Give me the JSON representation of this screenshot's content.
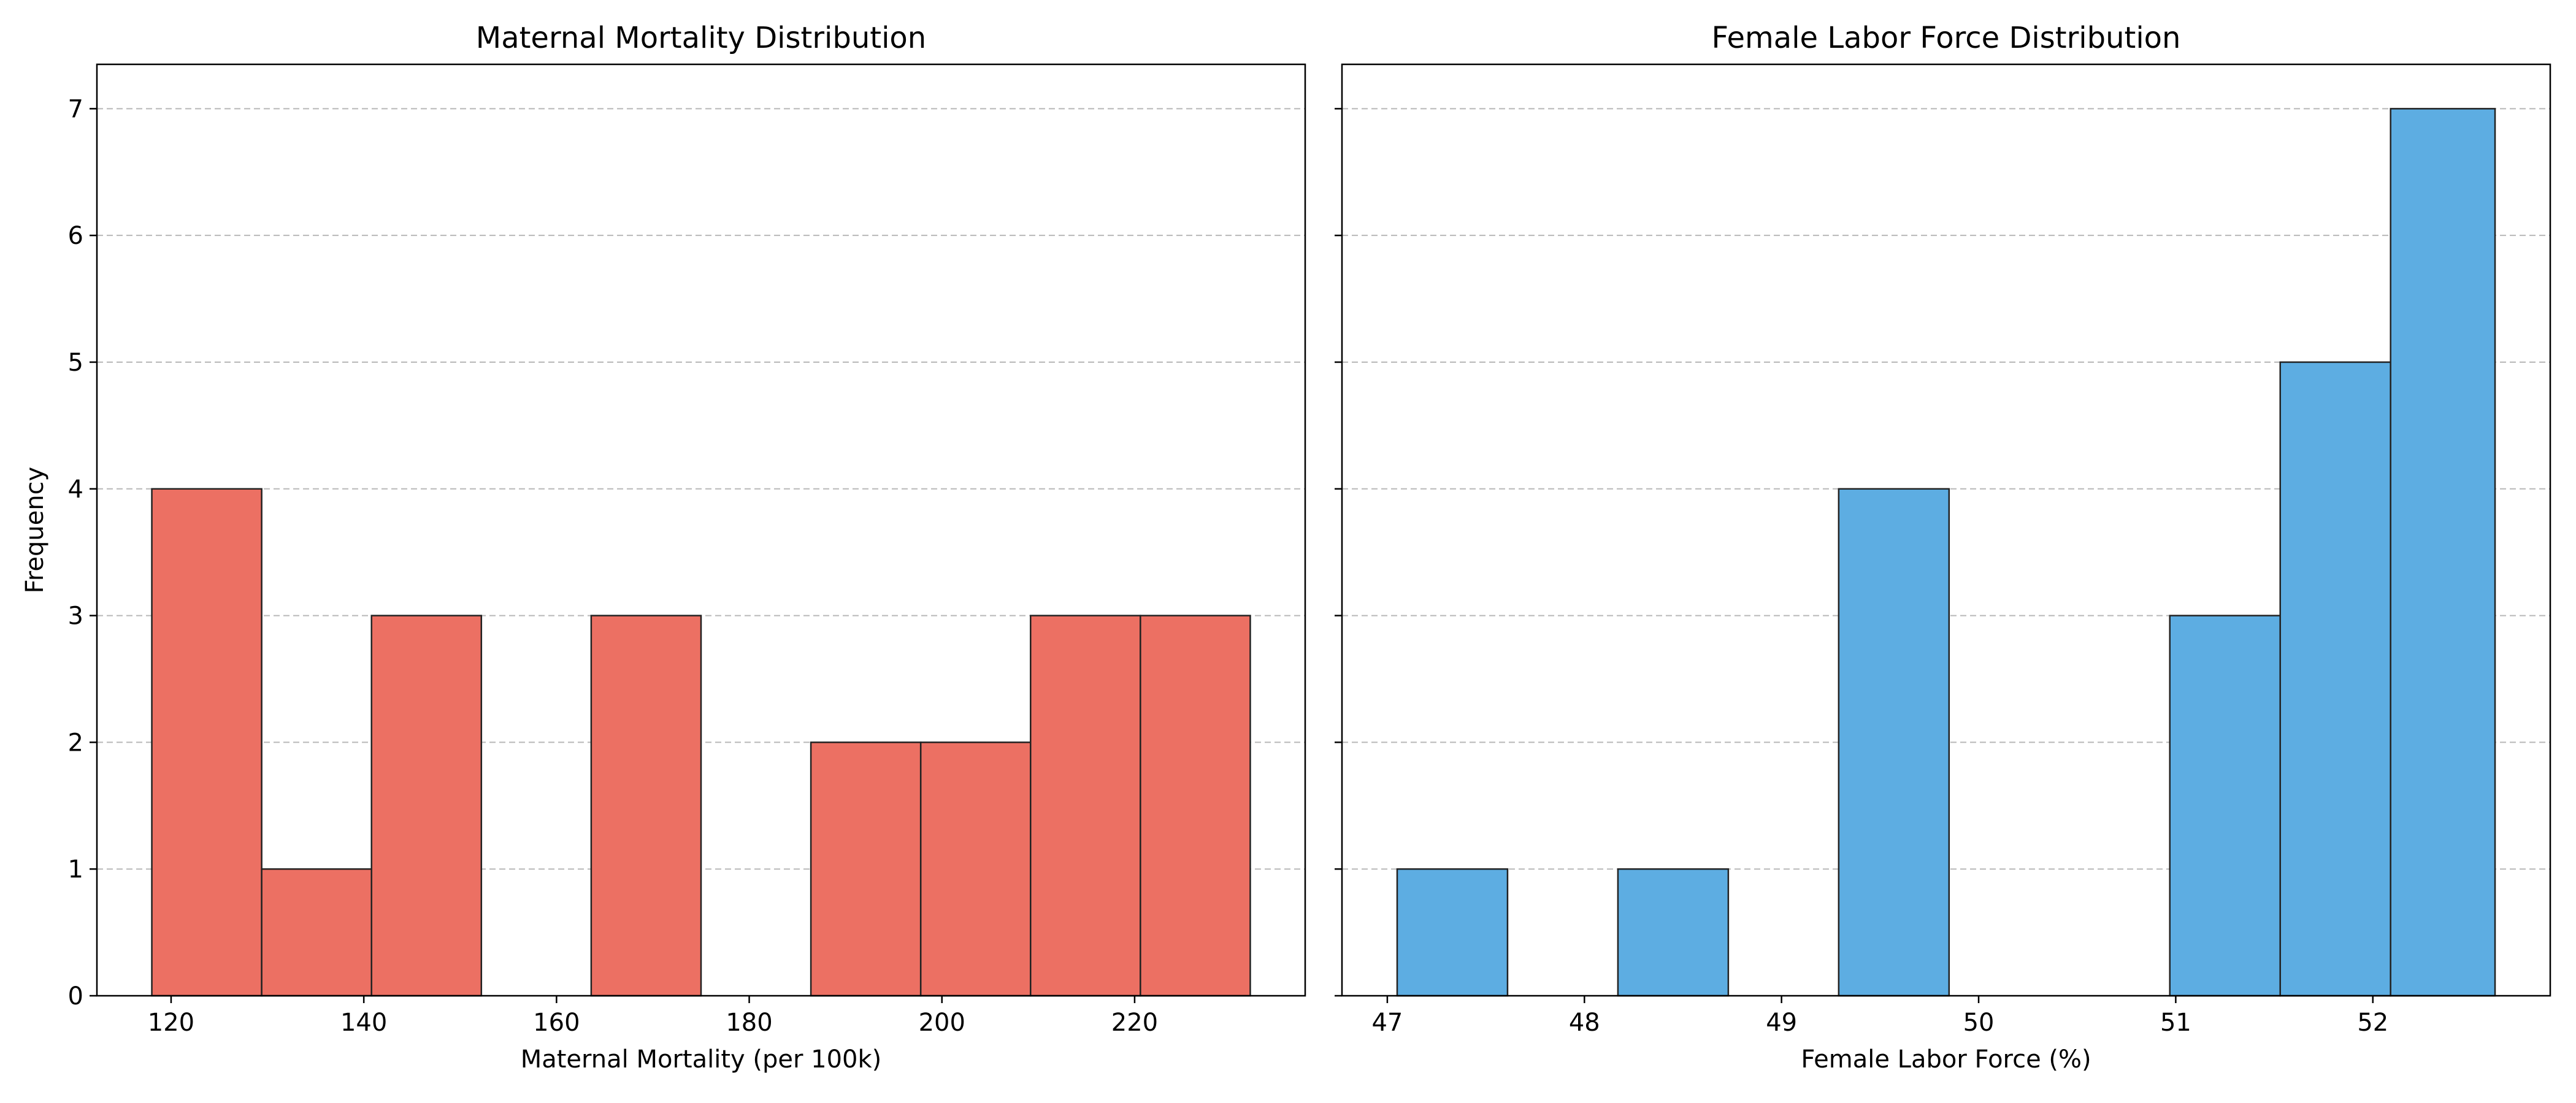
{
  "chart_data": [
    {
      "type": "bar",
      "chart_type": "histogram",
      "title": "Maternal Mortality Distribution",
      "xlabel": "Maternal Mortality (per 100k)",
      "ylabel": "Frequency",
      "xlim": [
        112.3,
        237.7
      ],
      "ylim": [
        0,
        7.35
      ],
      "xticks": [
        "120",
        "140",
        "160",
        "180",
        "200",
        "220"
      ],
      "yticks": [
        "0",
        "1",
        "2",
        "3",
        "4",
        "5",
        "6",
        "7"
      ],
      "bin_edges": [
        118,
        129.4,
        140.8,
        152.2,
        163.6,
        175,
        186.4,
        197.8,
        209.2,
        220.6,
        232
      ],
      "values": [
        4,
        1,
        3,
        0,
        3,
        0,
        2,
        2,
        3,
        3
      ],
      "color": "#ec7063",
      "grid": "horizontal dashed"
    },
    {
      "type": "bar",
      "chart_type": "histogram",
      "title": "Female Labor Force Distribution",
      "xlabel": "Female Labor Force (%)",
      "ylabel": "",
      "xlim": [
        46.77,
        52.9
      ],
      "ylim": [
        0,
        7.35
      ],
      "xticks": [
        "47",
        "48",
        "49",
        "50",
        "51",
        "52"
      ],
      "bin_edges": [
        47.05,
        47.61,
        48.17,
        48.73,
        49.29,
        49.85,
        50.41,
        50.97,
        51.53,
        52.09,
        52.62
      ],
      "values": [
        1,
        0,
        1,
        0,
        4,
        0,
        0,
        3,
        5,
        7
      ],
      "color": "#5dade2",
      "grid": "horizontal dashed"
    }
  ]
}
